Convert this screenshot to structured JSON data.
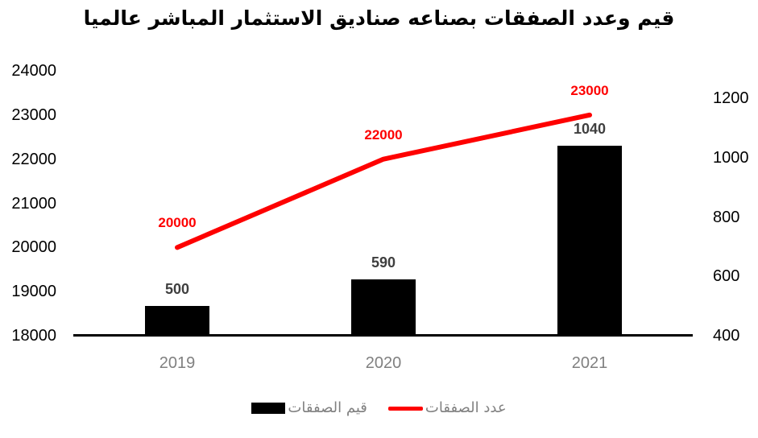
{
  "chart_data": {
    "type": "combo-bar-line",
    "title": "قيم وعدد الصفقات بصناعه صناديق الاستثمار المباشر عالميا",
    "categories": [
      "2019",
      "2020",
      "2021"
    ],
    "series": [
      {
        "name": "قيم الصفقات",
        "type": "bar",
        "axis": "right",
        "color": "#000000",
        "label_color": "#3f3f3f",
        "values": [
          500,
          590,
          1040
        ]
      },
      {
        "name": "عدد الصفقات",
        "type": "line",
        "axis": "left",
        "color": "#fe0000",
        "label_color": "#fe0000",
        "values": [
          20000,
          22000,
          23000
        ]
      }
    ],
    "left_axis": {
      "min": 18000,
      "max": 24000,
      "step": 1000,
      "ticks": [
        24000,
        23000,
        22000,
        21000,
        20000,
        19000,
        18000
      ]
    },
    "right_axis": {
      "min": 400,
      "max": 1200,
      "step": 200,
      "ticks": [
        1200,
        1000,
        800,
        600,
        400
      ]
    },
    "grid": false,
    "legend_position": "bottom",
    "axis_text_color": "#000000",
    "category_text_color": "#808080",
    "legend_text_color": "#808080"
  }
}
